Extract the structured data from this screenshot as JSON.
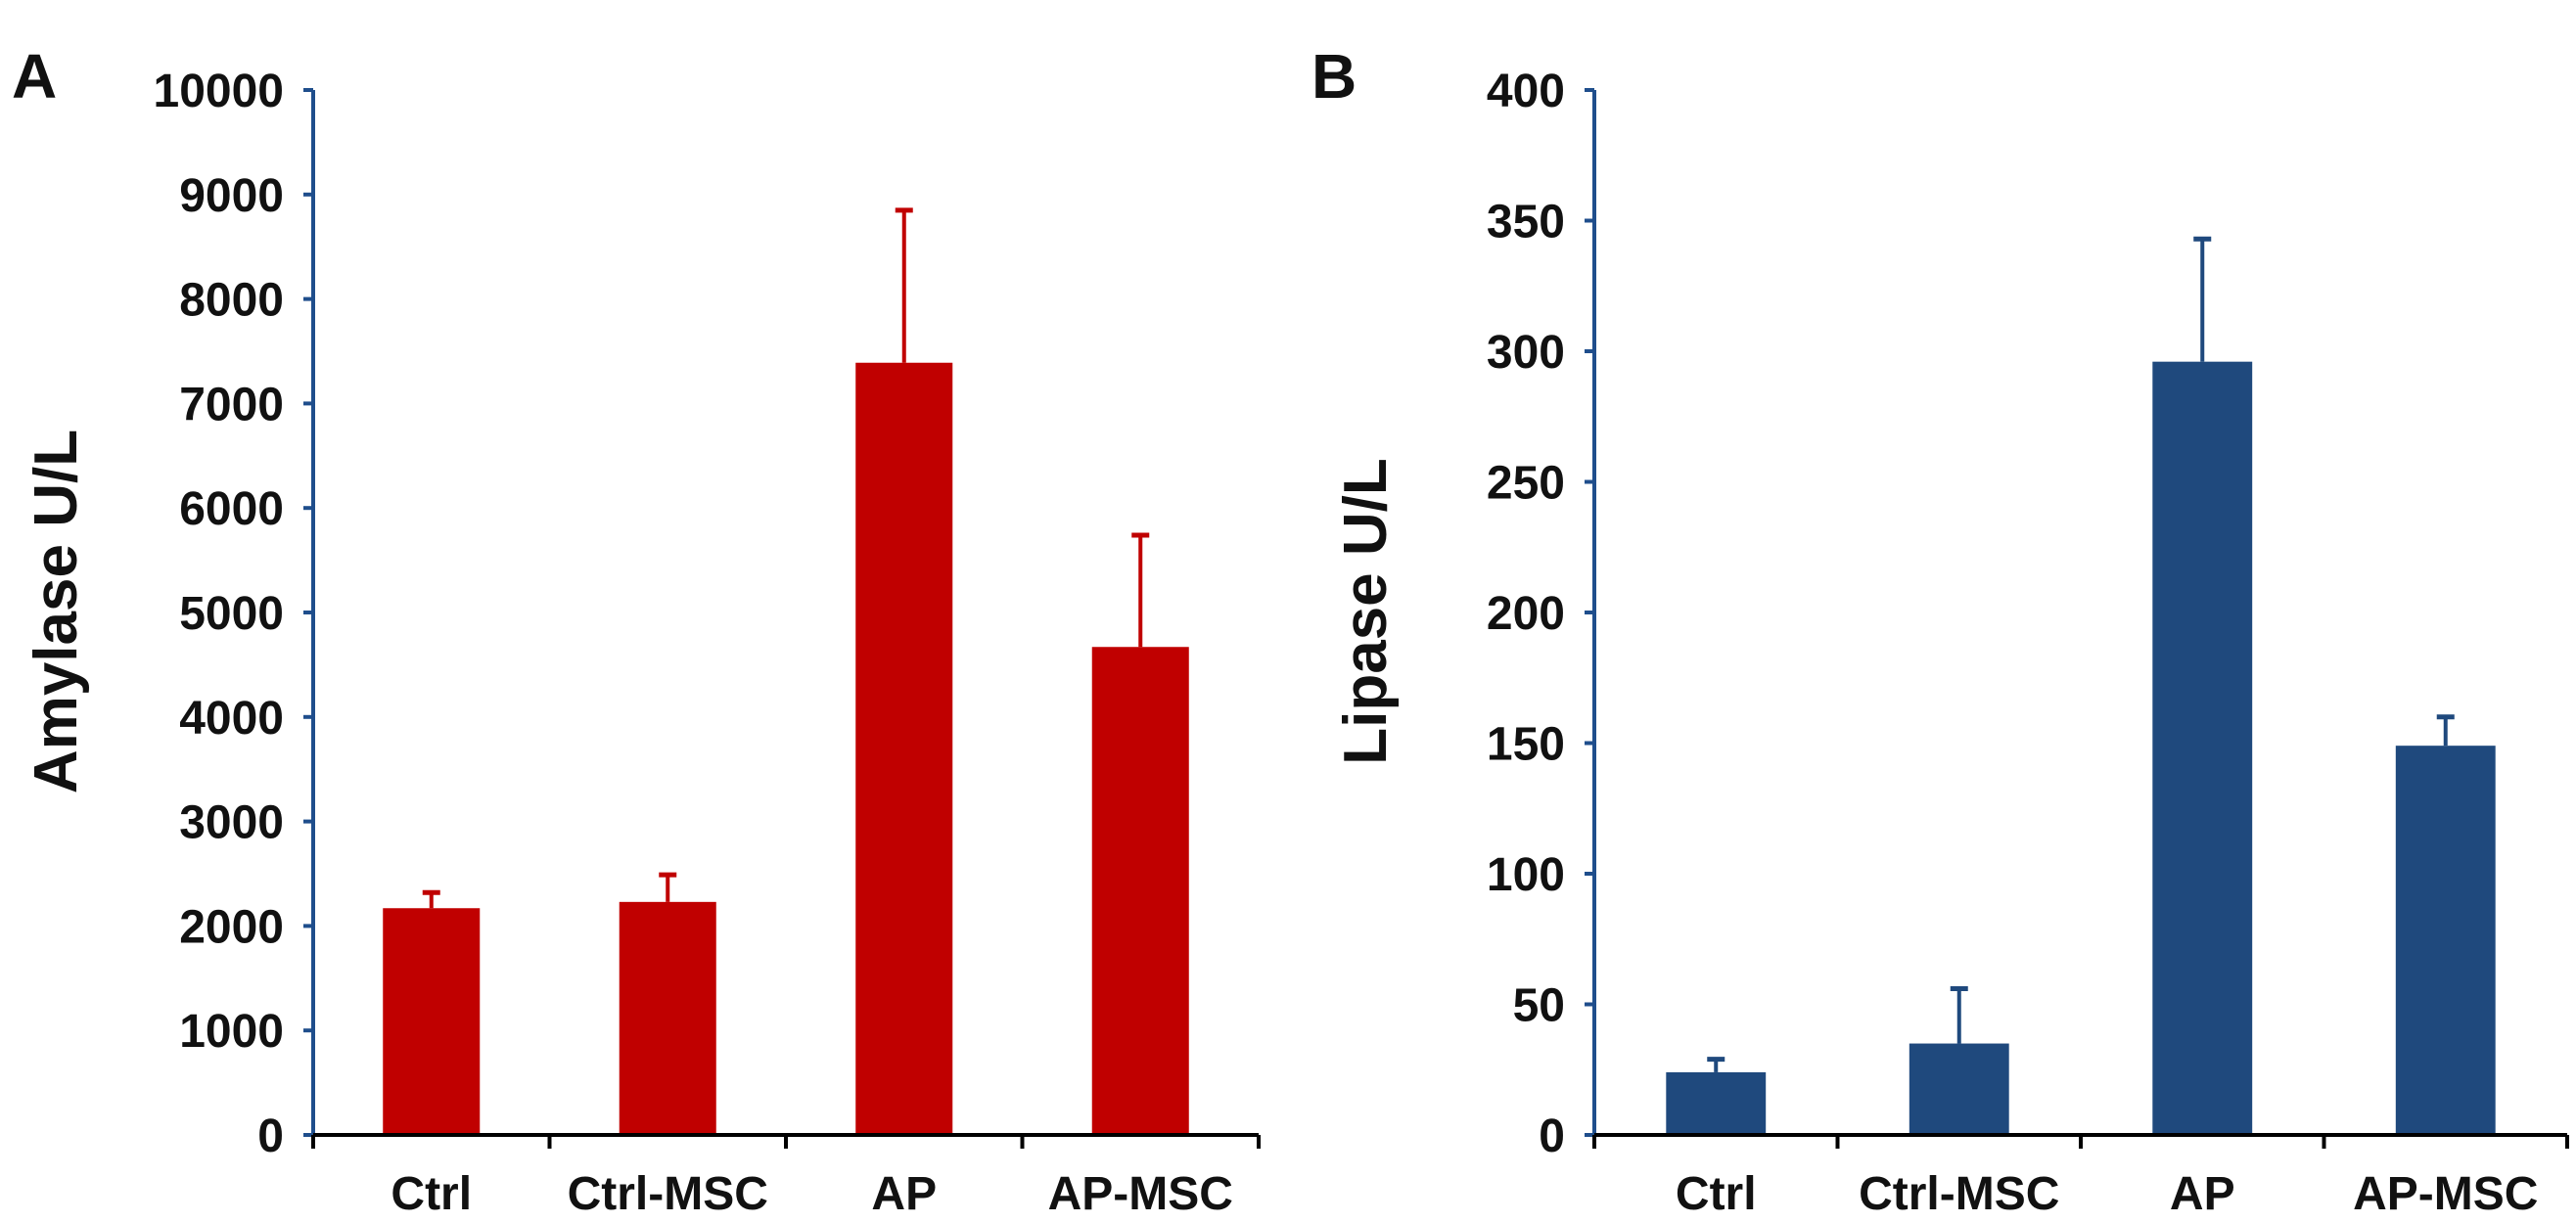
{
  "chart_data": [
    {
      "type": "bar",
      "panel": "A",
      "title": "",
      "xlabel": "",
      "ylabel": "Amylase U/L",
      "categories": [
        "Ctrl",
        "Ctrl-MSC",
        "AP",
        "AP-MSC"
      ],
      "values": [
        2170,
        2230,
        7390,
        4670
      ],
      "error_upper": [
        2320,
        2490,
        8850,
        5740
      ],
      "ylim": [
        0,
        10000
      ],
      "yticks": [
        0,
        1000,
        2000,
        3000,
        4000,
        5000,
        6000,
        7000,
        8000,
        9000,
        10000
      ],
      "grid": false,
      "bar_color": "#C00000",
      "axis_color": "#1F4E8C"
    },
    {
      "type": "bar",
      "panel": "B",
      "title": "",
      "xlabel": "",
      "ylabel": "Lipase U/L",
      "categories": [
        "Ctrl",
        "Ctrl-MSC",
        "AP",
        "AP-MSC"
      ],
      "values": [
        24,
        35,
        296,
        149
      ],
      "error_upper": [
        29,
        56,
        343,
        160
      ],
      "ylim": [
        0,
        400
      ],
      "yticks": [
        0,
        50,
        100,
        150,
        200,
        250,
        300,
        350,
        400
      ],
      "grid": false,
      "bar_color": "#1F497D",
      "axis_color": "#1F4E8C"
    }
  ]
}
